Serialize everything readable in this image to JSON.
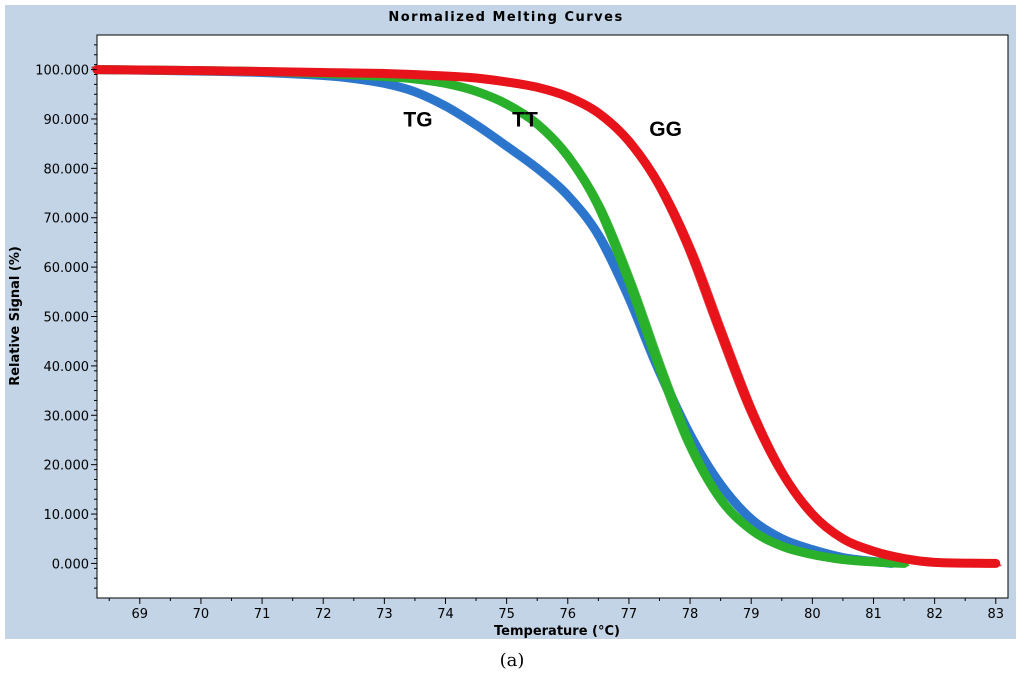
{
  "chart_data": {
    "type": "line",
    "title": "Normalized Melting Curves",
    "xlabel": "Temperature (°C)",
    "ylabel": "Relative Signal (%)",
    "xlim": [
      68.3,
      83.2
    ],
    "ylim": [
      -7,
      107
    ],
    "xticks": [
      69,
      70,
      71,
      72,
      73,
      74,
      75,
      76,
      77,
      78,
      79,
      80,
      81,
      82,
      83
    ],
    "yticks": [
      0,
      10,
      20,
      30,
      40,
      50,
      60,
      70,
      80,
      90,
      100
    ],
    "ytick_labels": [
      "0.000",
      "10.000",
      "20.000",
      "30.000",
      "40.000",
      "50.000",
      "60.000",
      "70.000",
      "80.000",
      "90.000",
      "100.000"
    ],
    "grid": false,
    "series": [
      {
        "name": "GG",
        "color": "#e8141b",
        "x": [
          68.3,
          70,
          71,
          72,
          73,
          74,
          74.5,
          75,
          75.5,
          76,
          76.5,
          77,
          77.5,
          78,
          78.5,
          79,
          79.5,
          80,
          80.5,
          81,
          81.5,
          82,
          83
        ],
        "y": [
          100,
          99.8,
          99.6,
          99.4,
          99.2,
          98.7,
          98.3,
          97.5,
          96.4,
          94.5,
          91.2,
          85.5,
          76.5,
          63.5,
          47,
          31,
          18.5,
          10,
          5,
          2.5,
          1,
          0.2,
          0
        ]
      },
      {
        "name": "TT",
        "color": "#2ab02a",
        "x": [
          68.3,
          70,
          71,
          72,
          73,
          73.5,
          74,
          74.5,
          75,
          75.5,
          76,
          76.5,
          77,
          77.5,
          78,
          78.5,
          79,
          79.5,
          80,
          80.5,
          81,
          81.5
        ],
        "y": [
          100,
          99.8,
          99.6,
          99.2,
          98.6,
          98.1,
          97.2,
          95.6,
          93,
          89,
          82.5,
          72.5,
          57.5,
          40,
          24,
          13,
          6.8,
          3.5,
          1.8,
          0.8,
          0.3,
          0
        ]
      },
      {
        "name": "TG",
        "color": "#2c76cc",
        "x": [
          68.3,
          70,
          71,
          72,
          72.5,
          73,
          73.5,
          74,
          74.5,
          75,
          75.5,
          76,
          76.5,
          77,
          77.5,
          78,
          78.5,
          79,
          79.5,
          80,
          80.5,
          81,
          81.3
        ],
        "y": [
          100,
          99.7,
          99.4,
          98.8,
          98.2,
          97.2,
          95.5,
          92.6,
          88.8,
          84.5,
          80,
          74.5,
          66.5,
          54,
          39,
          26,
          16,
          9,
          5,
          2.8,
          1.2,
          0.4,
          0
        ]
      }
    ],
    "annotations": [
      "TG",
      "TT",
      "GG"
    ]
  },
  "caption": "(a)"
}
